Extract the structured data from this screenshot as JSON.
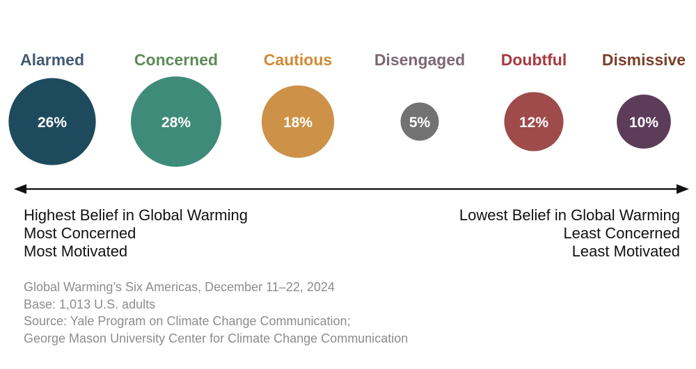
{
  "chart_data": {
    "type": "bubble",
    "title": "Global Warming’s Six Americas",
    "unit": "%",
    "categories": [
      "Alarmed",
      "Concerned",
      "Cautious",
      "Disengaged",
      "Doubtful",
      "Dismissive"
    ],
    "values": [
      26,
      28,
      18,
      5,
      12,
      10
    ],
    "value_labels": [
      "26%",
      "28%",
      "18%",
      "5%",
      "12%",
      "10%"
    ],
    "label_colors": [
      "#425a72",
      "#5e8a58",
      "#d08a36",
      "#7c6873",
      "#a7393e",
      "#7a3f2a"
    ],
    "circle_colors": [
      "#1e4a5e",
      "#3f8b79",
      "#cd9147",
      "#727272",
      "#9f4b4b",
      "#5d3c5a"
    ],
    "axis": {
      "direction": "bidirectional",
      "left_end": [
        "Highest Belief in Global Warming",
        "Most Concerned",
        "Most Motivated"
      ],
      "right_end": [
        "Lowest Belief in Global Warming",
        "Least Concerned",
        "Least Motivated"
      ]
    }
  },
  "source_lines": [
    "Global Warming’s Six Americas, December 11–22, 2024",
    "Base: 1,013 U.S. adults",
    "Source: Yale Program on Climate Change Communication;",
    "George Mason University Center for Climate Change Communication"
  ],
  "colors": {
    "axis": "#111111",
    "source_text": "#8c8c8c"
  }
}
